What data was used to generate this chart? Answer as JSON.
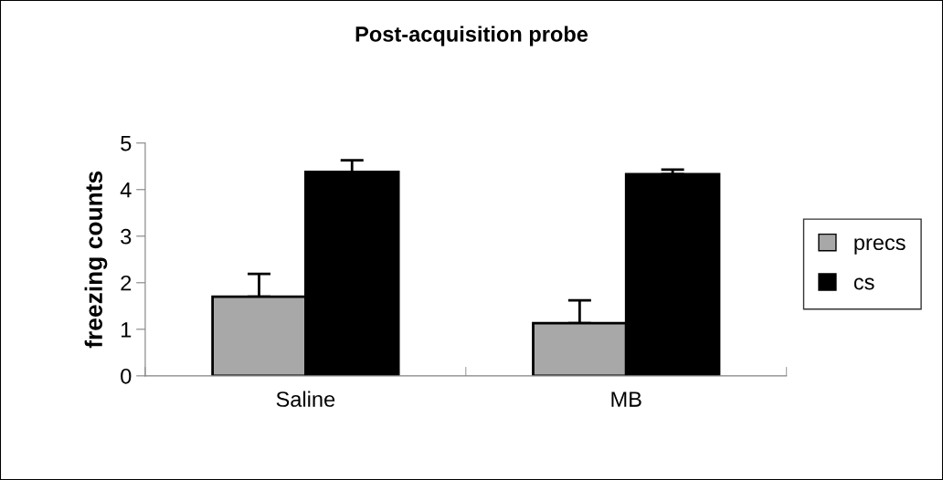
{
  "chart_data": {
    "type": "bar",
    "title": "Post-acquisition probe",
    "ylabel": "freezing counts",
    "categories": [
      "Saline",
      "MB"
    ],
    "series": [
      {
        "name": "precs",
        "color": "#a8a8a8",
        "values": [
          1.7,
          1.13
        ],
        "errors": [
          [
            1.7,
            2.19
          ],
          [
            1.13,
            1.62
          ]
        ]
      },
      {
        "name": "cs",
        "color": "#000000",
        "values": [
          4.38,
          4.33
        ],
        "errors": [
          [
            4.38,
            4.63
          ],
          [
            4.33,
            4.43
          ]
        ]
      }
    ],
    "ylim": [
      0,
      5
    ],
    "yticks": [
      0,
      1,
      2,
      3,
      4,
      5
    ],
    "grid": false,
    "legend": "right"
  }
}
